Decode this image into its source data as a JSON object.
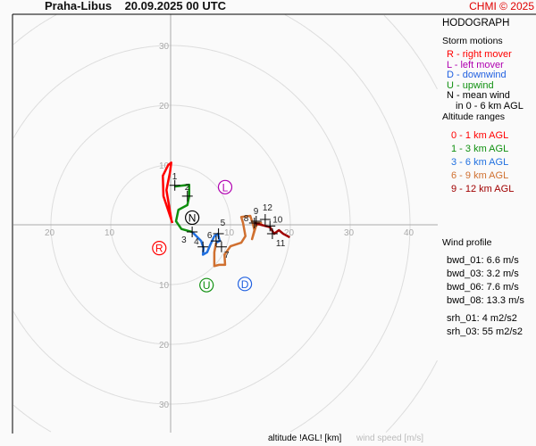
{
  "header": {
    "station": "Praha-Libus",
    "datetime": "20.09.2025 00 UTC",
    "copyright": "CHMI © 2025"
  },
  "legend": {
    "title": "HODOGRAPH",
    "storm_title": "Storm motions",
    "storm_items": [
      {
        "text": "R - right mover",
        "color": "#ff0000"
      },
      {
        "text": "L - left mover",
        "color": "#b000b0"
      },
      {
        "text": "D - downwind",
        "color": "#2060e0"
      },
      {
        "text": "U - upwind",
        "color": "#109010"
      },
      {
        "text": "N - mean wind",
        "color": "#000000"
      },
      {
        "text": "in 0 - 6 km AGL",
        "color": "#000000"
      }
    ],
    "alt_title": "Altitude ranges",
    "alt_items": [
      {
        "text": "0 - 1 km AGL",
        "color": "#ff0000"
      },
      {
        "text": "1 - 3 km AGL",
        "color": "#109010"
      },
      {
        "text": "3 - 6 km AGL",
        "color": "#2070e0"
      },
      {
        "text": "6 - 9 km AGL",
        "color": "#d07030"
      },
      {
        "text": "9 - 12 km AGL",
        "color": "#a00000"
      }
    ],
    "profile_title": "Wind profile",
    "profile_items": [
      "bwd_01: 6.6 m/s",
      "bwd_03: 3.2 m/s",
      "bwd_06: 7.6 m/s",
      "bwd_08: 13.3 m/s",
      "srh_01: 4 m2/s2",
      "srh_03: 55 m2/s2"
    ]
  },
  "footer": {
    "altitude_label": "altitude !AGL! [km]",
    "speed_label": "wind speed [m/s]"
  },
  "chart_data": {
    "type": "line",
    "title": "HODOGRAPH",
    "xlabel": "wind speed [m/s]",
    "ring_values": [
      10,
      20,
      30,
      40,
      50,
      60,
      70,
      80
    ],
    "x_tick_labels": [
      "20",
      "10",
      "10",
      "20",
      "30",
      "40"
    ],
    "x_tick_values": [
      -20,
      -10,
      10,
      20,
      30,
      40
    ],
    "y_tick_labels": [
      "30",
      "20",
      "10",
      "10",
      "20",
      "30"
    ],
    "y_tick_values": [
      30,
      20,
      10,
      -10,
      -20,
      -30
    ],
    "series": [
      {
        "name": "0 - 1 km AGL",
        "color": "#ff0000",
        "points": [
          [
            0.3,
            0.3
          ],
          [
            -1.2,
            4.8
          ],
          [
            -1.3,
            8.2
          ],
          [
            -0.4,
            10
          ],
          [
            0.1,
            10.4
          ],
          [
            -0.1,
            8.8
          ],
          [
            -0.7,
            5.8
          ],
          [
            0.1,
            1.0
          ]
        ]
      },
      {
        "name": "1 - 3 km AGL",
        "color": "#109010",
        "points": [
          [
            0.6,
            6.4
          ],
          [
            3.1,
            6.7
          ],
          [
            3.1,
            4.8
          ],
          [
            2.8,
            3.3
          ],
          [
            1.3,
            2.5
          ],
          [
            0.9,
            0.6
          ],
          [
            1.8,
            -0.7
          ],
          [
            3.6,
            -1.2
          ]
        ]
      },
      {
        "name": "3 - 6 km AGL",
        "color": "#2070e0",
        "points": [
          [
            3.6,
            -1.2
          ],
          [
            5.1,
            -2.7
          ],
          [
            5.5,
            -3.9
          ],
          [
            5.4,
            -5.0
          ],
          [
            6.1,
            -4.6
          ],
          [
            6.6,
            -3.4
          ],
          [
            7.3,
            -1.9
          ],
          [
            7.9,
            -1.5
          ],
          [
            8.2,
            -2.7
          ],
          [
            7.6,
            -3.0
          ]
        ]
      },
      {
        "name": "6 - 9 km AGL",
        "color": "#d07030",
        "points": [
          [
            7.6,
            -3.0
          ],
          [
            7.3,
            -4.6
          ],
          [
            7.3,
            -6.9
          ],
          [
            8.1,
            -6.7
          ],
          [
            9.1,
            -6.7
          ],
          [
            9.0,
            -5.0
          ],
          [
            10.0,
            -3.6
          ],
          [
            11.8,
            -3.0
          ],
          [
            12.5,
            -1.9
          ],
          [
            12.1,
            0.3
          ],
          [
            11.8,
            1.3
          ],
          [
            13.3,
            1.5
          ],
          [
            13.7,
            0.3
          ],
          [
            14.0,
            -0.9
          ],
          [
            13.6,
            -2.4
          ],
          [
            14.3,
            -0.1
          ],
          [
            15.1,
            0.3
          ],
          [
            14.0,
            0.3
          ]
        ]
      },
      {
        "name": "9 - 12 km AGL",
        "color": "#a00000",
        "points": [
          [
            14.0,
            0.3
          ],
          [
            15.1,
            0
          ],
          [
            16.6,
            -0.4
          ],
          [
            17.3,
            -1.5
          ],
          [
            18.1,
            -0.9
          ],
          [
            18.8,
            -1.5
          ],
          [
            19.9,
            -2.1
          ]
        ]
      }
    ],
    "height_markers": [
      {
        "label": "1",
        "u": 0.7,
        "v": 6.6
      },
      {
        "label": "2",
        "u": 2.8,
        "v": 4.8
      },
      {
        "label": "3",
        "u": 3.6,
        "v": -1.2
      },
      {
        "label": "4",
        "u": 5.4,
        "v": -3.7
      },
      {
        "label": "5",
        "u": 8.0,
        "v": -1.5
      },
      {
        "label": "6",
        "u": 7.6,
        "v": -2.7
      },
      {
        "label": "7",
        "u": 8.5,
        "v": -3.7
      },
      {
        "label": "8",
        "u": 14.0,
        "v": 0.3
      },
      {
        "label": "9",
        "u": 14.3,
        "v": 0.6
      },
      {
        "label": "10",
        "u": 16.6,
        "v": -0.2
      },
      {
        "label": "11",
        "u": 17.0,
        "v": -1.5
      },
      {
        "label": "12",
        "u": 15.8,
        "v": 0.9
      }
    ],
    "storm_motions": [
      {
        "label": "R",
        "u": -1.9,
        "v": -3.9,
        "color": "#ff0000"
      },
      {
        "label": "L",
        "u": 9.1,
        "v": 6.3,
        "color": "#b000b0"
      },
      {
        "label": "D",
        "u": 12.4,
        "v": -9.9,
        "color": "#2060e0"
      },
      {
        "label": "U",
        "u": 6.0,
        "v": -10.1,
        "color": "#109010"
      },
      {
        "label": "N",
        "u": 3.6,
        "v": 1.2,
        "color": "#000000"
      }
    ]
  }
}
